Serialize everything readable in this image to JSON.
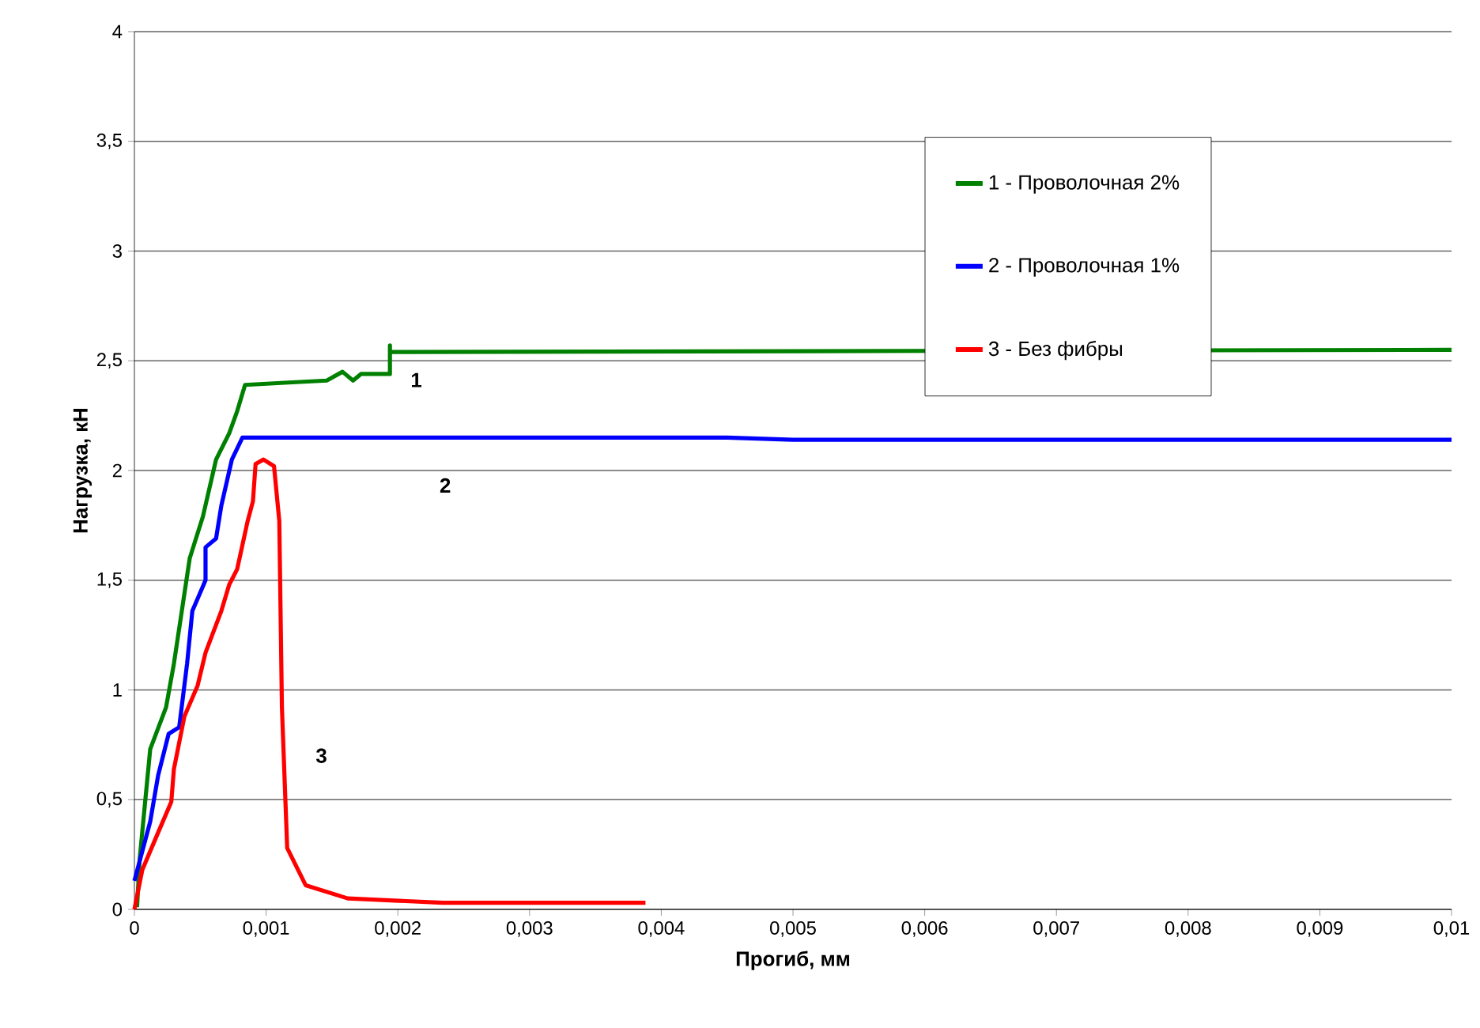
{
  "chart_data": {
    "type": "line",
    "xlabel": "Прогиб, мм",
    "ylabel": "Нагрузка, кН",
    "xlim": [
      0,
      0.01
    ],
    "ylim": [
      0,
      4
    ],
    "xticks": [
      {
        "value": 0,
        "label": "0"
      },
      {
        "value": 0.001,
        "label": "0,001"
      },
      {
        "value": 0.002,
        "label": "0,002"
      },
      {
        "value": 0.003,
        "label": "0,003"
      },
      {
        "value": 0.004,
        "label": "0,004"
      },
      {
        "value": 0.005,
        "label": "0,005"
      },
      {
        "value": 0.006,
        "label": "0,006"
      },
      {
        "value": 0.007,
        "label": "0,007"
      },
      {
        "value": 0.008,
        "label": "0,008"
      },
      {
        "value": 0.009,
        "label": "0,009"
      },
      {
        "value": 0.01,
        "label": "0,01"
      }
    ],
    "yticks": [
      0,
      {
        "value": 0.5,
        "label": "0,5"
      },
      1,
      {
        "value": 1.5,
        "label": "1,5"
      },
      2,
      {
        "value": 2.5,
        "label": "2,5"
      },
      3,
      {
        "value": 3.5,
        "label": "3,5"
      },
      4
    ],
    "grid": "y",
    "legend": "right",
    "marker": "none",
    "line_style": "solid",
    "series": [
      {
        "name": "1 - Проволочная 2%",
        "color": "#008000",
        "x": [
          2e-05,
          4e-05,
          0.00012,
          0.00024,
          0.0003,
          0.00036,
          0.00042,
          0.00052,
          0.00062,
          0.00072,
          0.00078,
          0.00084,
          0.00114,
          0.00146,
          0.00158,
          0.00166,
          0.00172,
          0.00194,
          0.00194,
          0.00194,
          0.01
        ],
        "values": [
          0.01,
          0.23,
          0.73,
          0.92,
          1.12,
          1.36,
          1.6,
          1.79,
          2.05,
          2.17,
          2.27,
          2.39,
          2.4,
          2.41,
          2.45,
          2.41,
          2.44,
          2.44,
          2.57,
          2.54,
          2.55
        ]
      },
      {
        "name": "2 - Проволочная 1%",
        "color": "#0000ff",
        "x": [
          0,
          0.00012,
          0.00018,
          0.00026,
          0.00034,
          0.0004,
          0.00044,
          0.00054,
          0.00054,
          0.00062,
          0.00066,
          0.00074,
          0.00082,
          0.0045,
          0.005,
          0.01
        ],
        "values": [
          0.13,
          0.4,
          0.61,
          0.8,
          0.83,
          1.12,
          1.36,
          1.5,
          1.65,
          1.69,
          1.84,
          2.05,
          2.15,
          2.15,
          2.14,
          2.14
        ]
      },
      {
        "name": "3 - Без фибры",
        "color": "#ff0000",
        "x": [
          0,
          6e-05,
          0.00018,
          0.00028,
          0.0003,
          0.00038,
          0.00048,
          0.00054,
          0.00066,
          0.00072,
          0.00078,
          0.00086,
          0.0009,
          0.00092,
          0.00098,
          0.00106,
          0.0011,
          0.00112,
          0.00116,
          0.0013,
          0.00162,
          0.00234,
          0.00388
        ],
        "values": [
          0,
          0.18,
          0.35,
          0.49,
          0.64,
          0.88,
          1.02,
          1.17,
          1.36,
          1.48,
          1.55,
          1.77,
          1.86,
          2.03,
          2.05,
          2.02,
          1.77,
          0.92,
          0.28,
          0.11,
          0.05,
          0.03,
          0.03
        ]
      }
    ],
    "annotations": [
      "1",
      "2",
      "3"
    ]
  }
}
